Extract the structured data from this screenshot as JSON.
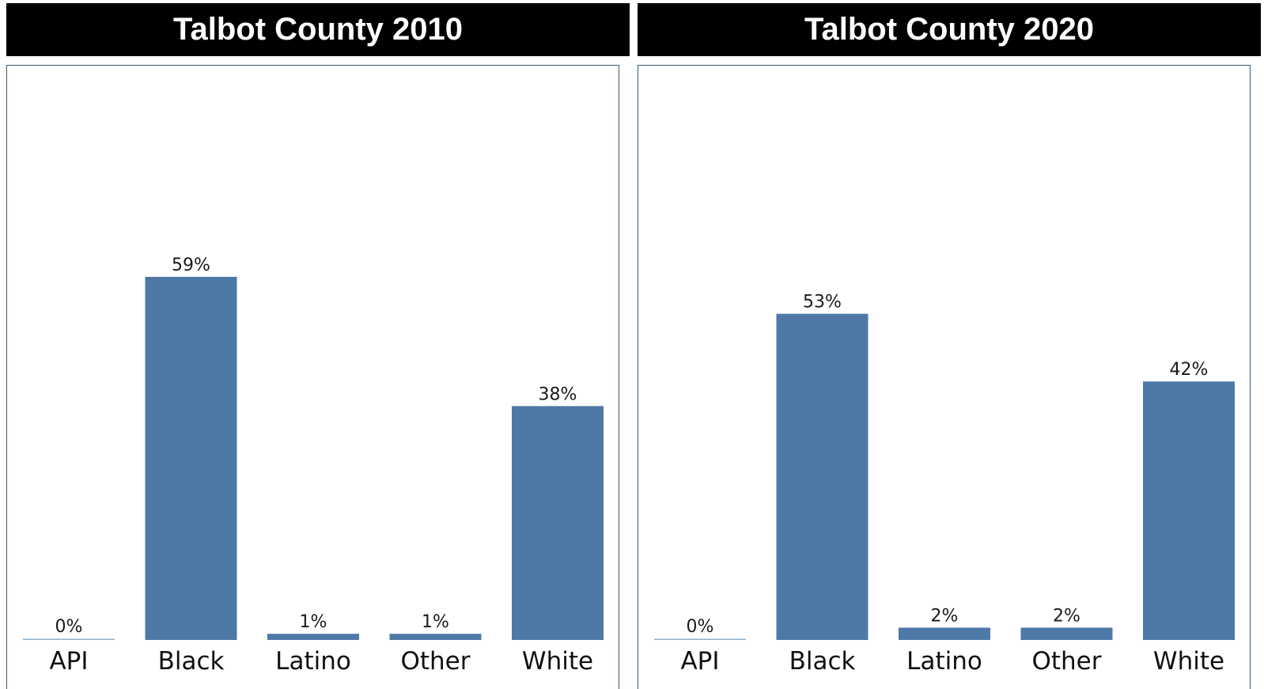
{
  "chart_data": [
    {
      "type": "bar",
      "title": "Talbot County 2010",
      "categories": [
        "API",
        "Black",
        "Latino",
        "Other",
        "White"
      ],
      "values": [
        0,
        59,
        1,
        1,
        38
      ],
      "labels": [
        "0%",
        "59%",
        "1%",
        "1%",
        "38%"
      ],
      "ylim": [
        0,
        100
      ],
      "grid": false,
      "bar_color": "#4e79a7"
    },
    {
      "type": "bar",
      "title": "Talbot County 2020",
      "categories": [
        "API",
        "Black",
        "Latino",
        "Other",
        "White"
      ],
      "values": [
        0,
        53,
        2,
        2,
        42
      ],
      "labels": [
        "0%",
        "53%",
        "2%",
        "2%",
        "42%"
      ],
      "ylim": [
        0,
        100
      ],
      "grid": false,
      "bar_color": "#4e79a7"
    }
  ]
}
